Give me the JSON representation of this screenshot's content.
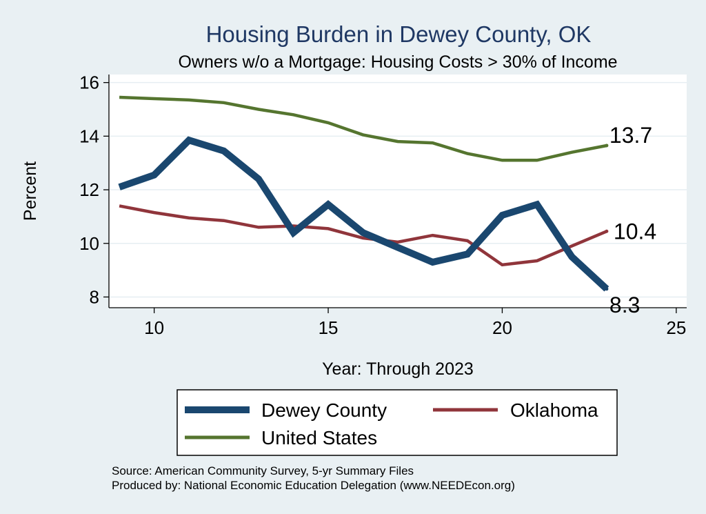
{
  "chart_data": {
    "type": "line",
    "title": "Housing Burden in Dewey County, OK",
    "subtitle": "Owners w/o a Mortgage: Housing Costs > 30% of Income",
    "xlabel": "Year: Through 2023",
    "ylabel": "Percent",
    "xlim": [
      8.7,
      25.3
    ],
    "ylim": [
      7.6,
      16.3
    ],
    "xticks": [
      10,
      15,
      20,
      25
    ],
    "yticks": [
      8,
      10,
      12,
      14,
      16
    ],
    "grid": true,
    "legend_position": "bottom",
    "series": [
      {
        "name": "Dewey County",
        "color": "#1a476f",
        "x": [
          9,
          10,
          11,
          12,
          13,
          14,
          15,
          16,
          17,
          18,
          19,
          20,
          21,
          22,
          23
        ],
        "values": [
          12.1,
          12.55,
          13.85,
          13.45,
          12.4,
          10.4,
          11.45,
          10.4,
          9.85,
          9.3,
          9.6,
          11.05,
          11.45,
          9.5,
          8.3
        ],
        "end_label": "8.3"
      },
      {
        "name": "Oklahoma",
        "color": "#90353b",
        "x": [
          9,
          10,
          11,
          12,
          13,
          14,
          15,
          16,
          17,
          18,
          19,
          20,
          21,
          22,
          23
        ],
        "values": [
          11.4,
          11.15,
          10.95,
          10.85,
          10.6,
          10.65,
          10.55,
          10.2,
          10.05,
          10.3,
          10.1,
          9.2,
          9.35,
          9.9,
          10.45
        ],
        "end_label": "10.4"
      },
      {
        "name": "United States",
        "color": "#55752f",
        "x": [
          9,
          10,
          11,
          12,
          13,
          14,
          15,
          16,
          17,
          18,
          19,
          20,
          21,
          22,
          23
        ],
        "values": [
          15.45,
          15.4,
          15.35,
          15.25,
          15.0,
          14.8,
          14.5,
          14.05,
          13.8,
          13.75,
          13.35,
          13.1,
          13.1,
          13.4,
          13.65
        ],
        "end_label": "13.7"
      }
    ]
  },
  "legend": {
    "items": [
      "Dewey County",
      "Oklahoma",
      "United States"
    ]
  },
  "source": {
    "line1": "Source: American Community Survey, 5-yr Summary Files",
    "line2": "Produced by: National Economic Education Delegation (www.NEEDEcon.org)"
  }
}
